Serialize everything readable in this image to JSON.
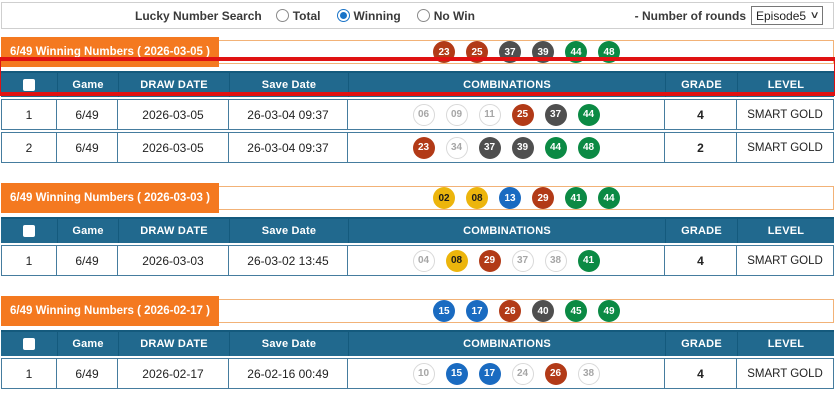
{
  "search_bar": {
    "label": "Lucky Number Search",
    "options": [
      {
        "label": "Total",
        "selected": false
      },
      {
        "label": "Winning",
        "selected": true
      },
      {
        "label": "No Win",
        "selected": false
      }
    ],
    "rounds_label": "- Number of rounds",
    "rounds_value": "Episode5",
    "caret_icon": "∨"
  },
  "table_headers": [
    "",
    "Game",
    "DRAW DATE",
    "Save Date",
    "COMBINATIONS",
    "GRADE",
    "LEVEL"
  ],
  "colors": {
    "header_teal": "#21698e",
    "section_orange": "#f47920",
    "highlight_red": "#e01212",
    "ball_yellow": "#ecb50c",
    "ball_blue": "#1a6bc1",
    "ball_red": "#b23a17",
    "ball_gray": "#4f4f4f",
    "ball_green": "#0b8a44",
    "ball_white_bg": "#ffffff",
    "ball_white_border": "#d9d9d9",
    "ball_white_text": "#a6a6a6",
    "ball_yellow_text": "#1a1a1a"
  },
  "sections": [
    {
      "title": "6/49 Winning Numbers ( 2026-03-05 )",
      "winning_numbers": [
        {
          "n": "23",
          "c": "red"
        },
        {
          "n": "25",
          "c": "red"
        },
        {
          "n": "37",
          "c": "gray"
        },
        {
          "n": "39",
          "c": "gray"
        },
        {
          "n": "44",
          "c": "green"
        },
        {
          "n": "48",
          "c": "green"
        }
      ],
      "rows": [
        {
          "no": "1",
          "game": "6/49",
          "draw_date": "2026-03-05",
          "save_date": "26-03-04 09:37",
          "combinations": [
            {
              "n": "06",
              "c": "white"
            },
            {
              "n": "09",
              "c": "white"
            },
            {
              "n": "11",
              "c": "white"
            },
            {
              "n": "25",
              "c": "red"
            },
            {
              "n": "37",
              "c": "gray"
            },
            {
              "n": "44",
              "c": "green"
            }
          ],
          "grade": "4",
          "level": "SMART GOLD",
          "highlighted": false
        },
        {
          "no": "2",
          "game": "6/49",
          "draw_date": "2026-03-05",
          "save_date": "26-03-04 09:37",
          "combinations": [
            {
              "n": "23",
              "c": "red"
            },
            {
              "n": "34",
              "c": "white"
            },
            {
              "n": "37",
              "c": "gray"
            },
            {
              "n": "39",
              "c": "gray"
            },
            {
              "n": "44",
              "c": "green"
            },
            {
              "n": "48",
              "c": "green"
            }
          ],
          "grade": "2",
          "level": "SMART GOLD",
          "highlighted": true
        }
      ]
    },
    {
      "title": "6/49 Winning Numbers ( 2026-03-03 )",
      "winning_numbers": [
        {
          "n": "02",
          "c": "yellow"
        },
        {
          "n": "08",
          "c": "yellow"
        },
        {
          "n": "13",
          "c": "blue"
        },
        {
          "n": "29",
          "c": "red"
        },
        {
          "n": "41",
          "c": "green"
        },
        {
          "n": "44",
          "c": "green"
        }
      ],
      "rows": [
        {
          "no": "1",
          "game": "6/49",
          "draw_date": "2026-03-03",
          "save_date": "26-03-02 13:45",
          "combinations": [
            {
              "n": "04",
              "c": "white"
            },
            {
              "n": "08",
              "c": "yellow"
            },
            {
              "n": "29",
              "c": "red"
            },
            {
              "n": "37",
              "c": "white"
            },
            {
              "n": "38",
              "c": "white"
            },
            {
              "n": "41",
              "c": "green"
            }
          ],
          "grade": "4",
          "level": "SMART GOLD",
          "highlighted": false
        }
      ]
    },
    {
      "title": "6/49 Winning Numbers ( 2026-02-17 )",
      "winning_numbers": [
        {
          "n": "15",
          "c": "blue"
        },
        {
          "n": "17",
          "c": "blue"
        },
        {
          "n": "26",
          "c": "red"
        },
        {
          "n": "40",
          "c": "gray"
        },
        {
          "n": "45",
          "c": "green"
        },
        {
          "n": "49",
          "c": "green"
        }
      ],
      "rows": [
        {
          "no": "1",
          "game": "6/49",
          "draw_date": "2026-02-17",
          "save_date": "26-02-16 00:49",
          "combinations": [
            {
              "n": "10",
              "c": "white"
            },
            {
              "n": "15",
              "c": "blue"
            },
            {
              "n": "17",
              "c": "blue"
            },
            {
              "n": "24",
              "c": "white"
            },
            {
              "n": "26",
              "c": "red"
            },
            {
              "n": "38",
              "c": "white"
            }
          ],
          "grade": "4",
          "level": "SMART GOLD",
          "highlighted": false
        }
      ]
    }
  ]
}
